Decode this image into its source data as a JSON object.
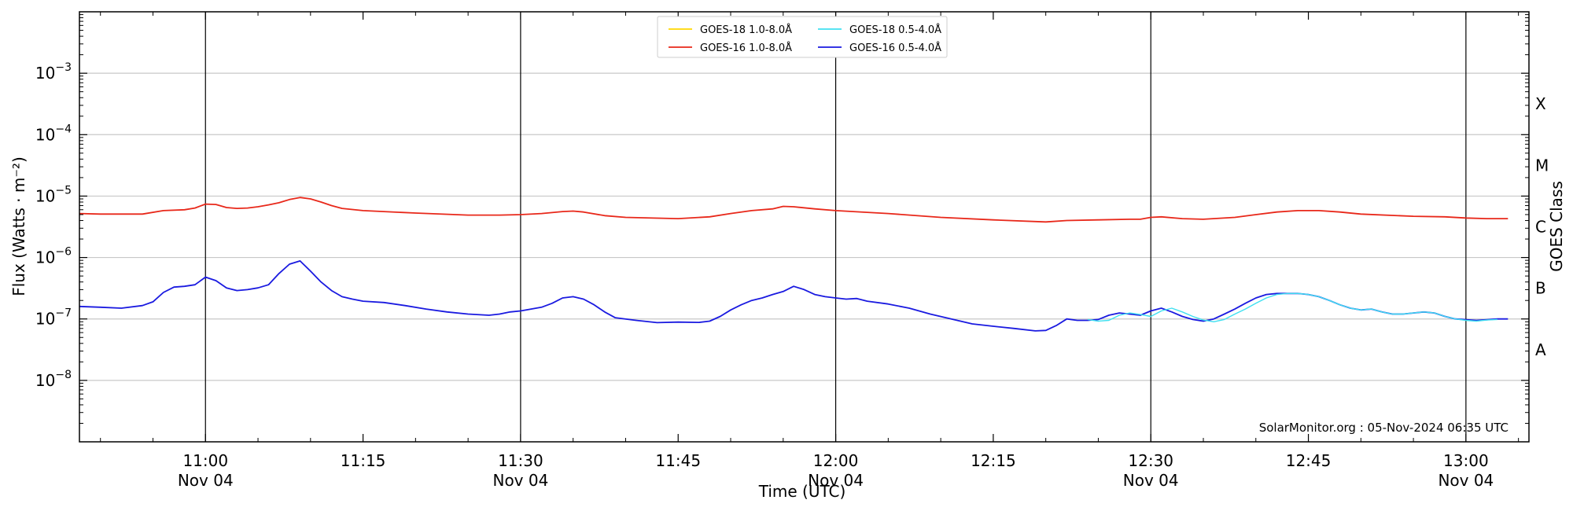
{
  "chart_data": {
    "type": "line",
    "xlabel": "Time (UTC)",
    "ylabel": "Flux (Watts · m⁻²)",
    "y2label": "GOES Class",
    "yscale": "log",
    "ylim": [
      1e-09,
      0.01
    ],
    "xlim": [
      "10:48",
      "13:06"
    ],
    "grid": "horizontal",
    "legend_position": "top-center",
    "credit": "SolarMonitor.org : 05-Nov-2024 06:35 UTC",
    "y_ticks": [
      {
        "value": 1e-08,
        "base": "10",
        "exp": "−8"
      },
      {
        "value": 1e-07,
        "base": "10",
        "exp": "−7"
      },
      {
        "value": 1e-06,
        "base": "10",
        "exp": "−6"
      },
      {
        "value": 1e-05,
        "base": "10",
        "exp": "−5"
      },
      {
        "value": 0.0001,
        "base": "10",
        "exp": "−4"
      },
      {
        "value": 0.001,
        "base": "10",
        "exp": "−3"
      }
    ],
    "x_ticks": [
      {
        "time": "11:00",
        "line1": "11:00",
        "line2": "Nov 04",
        "major": true
      },
      {
        "time": "11:15",
        "line1": "11:15",
        "line2": "",
        "major": false
      },
      {
        "time": "11:30",
        "line1": "11:30",
        "line2": "Nov 04",
        "major": true
      },
      {
        "time": "11:45",
        "line1": "11:45",
        "line2": "",
        "major": false
      },
      {
        "time": "12:00",
        "line1": "12:00",
        "line2": "Nov 04",
        "major": true
      },
      {
        "time": "12:15",
        "line1": "12:15",
        "line2": "",
        "major": false
      },
      {
        "time": "12:30",
        "line1": "12:30",
        "line2": "Nov 04",
        "major": true
      },
      {
        "time": "12:45",
        "line1": "12:45",
        "line2": "",
        "major": false
      },
      {
        "time": "13:00",
        "line1": "13:00",
        "line2": "Nov 04",
        "major": true
      }
    ],
    "goes_classes": [
      {
        "label": "A",
        "min": 1e-08
      },
      {
        "label": "B",
        "min": 1e-07
      },
      {
        "label": "C",
        "min": 1e-06
      },
      {
        "label": "M",
        "min": 1e-05
      },
      {
        "label": "X",
        "min": 0.0001
      }
    ],
    "series": [
      {
        "name": "GOES-18 1.0-8.0Å",
        "color": "#ffd700",
        "x": [],
        "values": []
      },
      {
        "name": "GOES-18 0.5-4.0Å",
        "color": "#40e0f0",
        "x": [
          "12:24",
          "12:25",
          "12:26",
          "12:27",
          "12:28",
          "12:29",
          "12:30",
          "12:31",
          "12:32",
          "12:33",
          "12:34",
          "12:35",
          "12:36",
          "12:37",
          "12:38",
          "12:39",
          "12:40",
          "12:41",
          "12:42",
          "12:43",
          "12:44",
          "12:45",
          "12:46",
          "12:47",
          "12:48",
          "12:49",
          "12:50",
          "12:51",
          "12:52",
          "12:53",
          "12:54",
          "12:55",
          "12:56",
          "12:57",
          "12:58",
          "12:59",
          "13:00",
          "13:01",
          "13:02",
          "13:03"
        ],
        "values": [
          9.8e-08,
          9.2e-08,
          9.5e-08,
          1.15e-07,
          1.25e-07,
          1.18e-07,
          1.1e-07,
          1.35e-07,
          1.5e-07,
          1.3e-07,
          1.1e-07,
          9.6e-08,
          9e-08,
          9.8e-08,
          1.2e-07,
          1.45e-07,
          1.8e-07,
          2.2e-07,
          2.5e-07,
          2.6e-07,
          2.6e-07,
          2.5e-07,
          2.3e-07,
          2e-07,
          1.7e-07,
          1.5e-07,
          1.4e-07,
          1.45e-07,
          1.3e-07,
          1.2e-07,
          1.2e-07,
          1.25e-07,
          1.3e-07,
          1.25e-07,
          1.1e-07,
          1e-07,
          9.5e-08,
          9.2e-08,
          9.6e-08,
          9.8e-08
        ]
      },
      {
        "name": "GOES-16 1.0-8.0Å",
        "color": "#e8281a",
        "x": [
          "10:48",
          "10:50",
          "10:52",
          "10:54",
          "10:56",
          "10:58",
          "10:59",
          "11:00",
          "11:01",
          "11:02",
          "11:03",
          "11:04",
          "11:05",
          "11:06",
          "11:07",
          "11:08",
          "11:09",
          "11:10",
          "11:11",
          "11:12",
          "11:13",
          "11:15",
          "11:20",
          "11:25",
          "11:28",
          "11:30",
          "11:32",
          "11:34",
          "11:35",
          "11:36",
          "11:38",
          "11:40",
          "11:45",
          "11:48",
          "11:50",
          "11:52",
          "11:54",
          "11:55",
          "11:56",
          "11:58",
          "12:00",
          "12:05",
          "12:10",
          "12:15",
          "12:20",
          "12:22",
          "12:25",
          "12:28",
          "12:29",
          "12:30",
          "12:31",
          "12:33",
          "12:35",
          "12:38",
          "12:40",
          "12:42",
          "12:44",
          "12:46",
          "12:48",
          "12:50",
          "12:55",
          "12:58",
          "13:00",
          "13:02",
          "13:04"
        ],
        "values": [
          5.2e-06,
          5.1e-06,
          5.1e-06,
          5.1e-06,
          5.8e-06,
          6e-06,
          6.4e-06,
          7.4e-06,
          7.3e-06,
          6.5e-06,
          6.3e-06,
          6.4e-06,
          6.7e-06,
          7.2e-06,
          7.8e-06,
          8.8e-06,
          9.5e-06,
          9e-06,
          8e-06,
          7e-06,
          6.3e-06,
          5.8e-06,
          5.3e-06,
          4.9e-06,
          4.9e-06,
          5e-06,
          5.2e-06,
          5.6e-06,
          5.7e-06,
          5.5e-06,
          4.8e-06,
          4.5e-06,
          4.3e-06,
          4.6e-06,
          5.2e-06,
          5.8e-06,
          6.2e-06,
          6.8e-06,
          6.7e-06,
          6.2e-06,
          5.8e-06,
          5.2e-06,
          4.5e-06,
          4.1e-06,
          3.8e-06,
          4e-06,
          4.1e-06,
          4.2e-06,
          4.2e-06,
          4.5e-06,
          4.6e-06,
          4.3e-06,
          4.2e-06,
          4.5e-06,
          5e-06,
          5.5e-06,
          5.8e-06,
          5.8e-06,
          5.5e-06,
          5.1e-06,
          4.7e-06,
          4.6e-06,
          4.4e-06,
          4.3e-06,
          4.3e-06
        ]
      },
      {
        "name": "GOES-16 0.5-4.0Å",
        "color": "#1a1ae0",
        "x": [
          "10:48",
          "10:50",
          "10:52",
          "10:54",
          "10:55",
          "10:56",
          "10:57",
          "10:58",
          "10:59",
          "11:00",
          "11:01",
          "11:02",
          "11:03",
          "11:04",
          "11:05",
          "11:06",
          "11:07",
          "11:08",
          "11:09",
          "11:10",
          "11:11",
          "11:12",
          "11:13",
          "11:14",
          "11:15",
          "11:17",
          "11:19",
          "11:21",
          "11:23",
          "11:25",
          "11:27",
          "11:28",
          "11:29",
          "11:30",
          "11:31",
          "11:32",
          "11:33",
          "11:34",
          "11:35",
          "11:36",
          "11:37",
          "11:38",
          "11:39",
          "11:41",
          "11:43",
          "11:45",
          "11:47",
          "11:48",
          "11:49",
          "11:50",
          "11:51",
          "11:52",
          "11:53",
          "11:54",
          "11:55",
          "11:56",
          "11:57",
          "11:58",
          "11:59",
          "12:00",
          "12:01",
          "12:02",
          "12:03",
          "12:05",
          "12:07",
          "12:09",
          "12:11",
          "12:13",
          "12:15",
          "12:17",
          "12:19",
          "12:20",
          "12:21",
          "12:22",
          "12:23",
          "12:24",
          "12:25",
          "12:26",
          "12:27",
          "12:28",
          "12:29",
          "12:30",
          "12:31",
          "12:32",
          "12:33",
          "12:34",
          "12:35",
          "12:36",
          "12:37",
          "12:38",
          "12:39",
          "12:40",
          "12:41",
          "12:42",
          "12:43",
          "12:44",
          "12:45",
          "12:46",
          "12:47",
          "12:48",
          "12:49",
          "12:50",
          "12:51",
          "12:52",
          "12:53",
          "12:54",
          "12:55",
          "12:56",
          "12:57",
          "12:58",
          "12:59",
          "13:00",
          "13:01",
          "13:02",
          "13:03",
          "13:04"
        ],
        "values": [
          1.6e-07,
          1.55e-07,
          1.5e-07,
          1.65e-07,
          1.9e-07,
          2.7e-07,
          3.3e-07,
          3.4e-07,
          3.6e-07,
          4.8e-07,
          4.2e-07,
          3.2e-07,
          2.9e-07,
          3e-07,
          3.2e-07,
          3.6e-07,
          5.5e-07,
          7.8e-07,
          8.8e-07,
          6e-07,
          4e-07,
          2.9e-07,
          2.3e-07,
          2.1e-07,
          1.95e-07,
          1.85e-07,
          1.65e-07,
          1.45e-07,
          1.3e-07,
          1.2e-07,
          1.15e-07,
          1.2e-07,
          1.3e-07,
          1.35e-07,
          1.45e-07,
          1.55e-07,
          1.8e-07,
          2.2e-07,
          2.3e-07,
          2.1e-07,
          1.7e-07,
          1.3e-07,
          1.05e-07,
          9.5e-08,
          8.7e-08,
          8.9e-08,
          8.8e-08,
          9.2e-08,
          1.1e-07,
          1.4e-07,
          1.7e-07,
          2e-07,
          2.2e-07,
          2.5e-07,
          2.8e-07,
          3.4e-07,
          3e-07,
          2.5e-07,
          2.3e-07,
          2.2e-07,
          2.1e-07,
          2.15e-07,
          1.95e-07,
          1.75e-07,
          1.5e-07,
          1.2e-07,
          1e-07,
          8.3e-08,
          7.6e-08,
          7e-08,
          6.4e-08,
          6.5e-08,
          7.8e-08,
          1e-07,
          9.5e-08,
          9.5e-08,
          9.8e-08,
          1.15e-07,
          1.25e-07,
          1.2e-07,
          1.15e-07,
          1.35e-07,
          1.5e-07,
          1.3e-07,
          1.1e-07,
          9.8e-08,
          9.2e-08,
          1e-07,
          1.2e-07,
          1.45e-07,
          1.8e-07,
          2.2e-07,
          2.5e-07,
          2.6e-07,
          2.6e-07,
          2.6e-07,
          2.5e-07,
          2.3e-07,
          2e-07,
          1.7e-07,
          1.5e-07,
          1.4e-07,
          1.45e-07,
          1.3e-07,
          1.2e-07,
          1.2e-07,
          1.25e-07,
          1.3e-07,
          1.25e-07,
          1.1e-07,
          1e-07,
          9.7e-08,
          9.5e-08,
          9.7e-08,
          1e-07,
          1e-07
        ]
      }
    ]
  }
}
